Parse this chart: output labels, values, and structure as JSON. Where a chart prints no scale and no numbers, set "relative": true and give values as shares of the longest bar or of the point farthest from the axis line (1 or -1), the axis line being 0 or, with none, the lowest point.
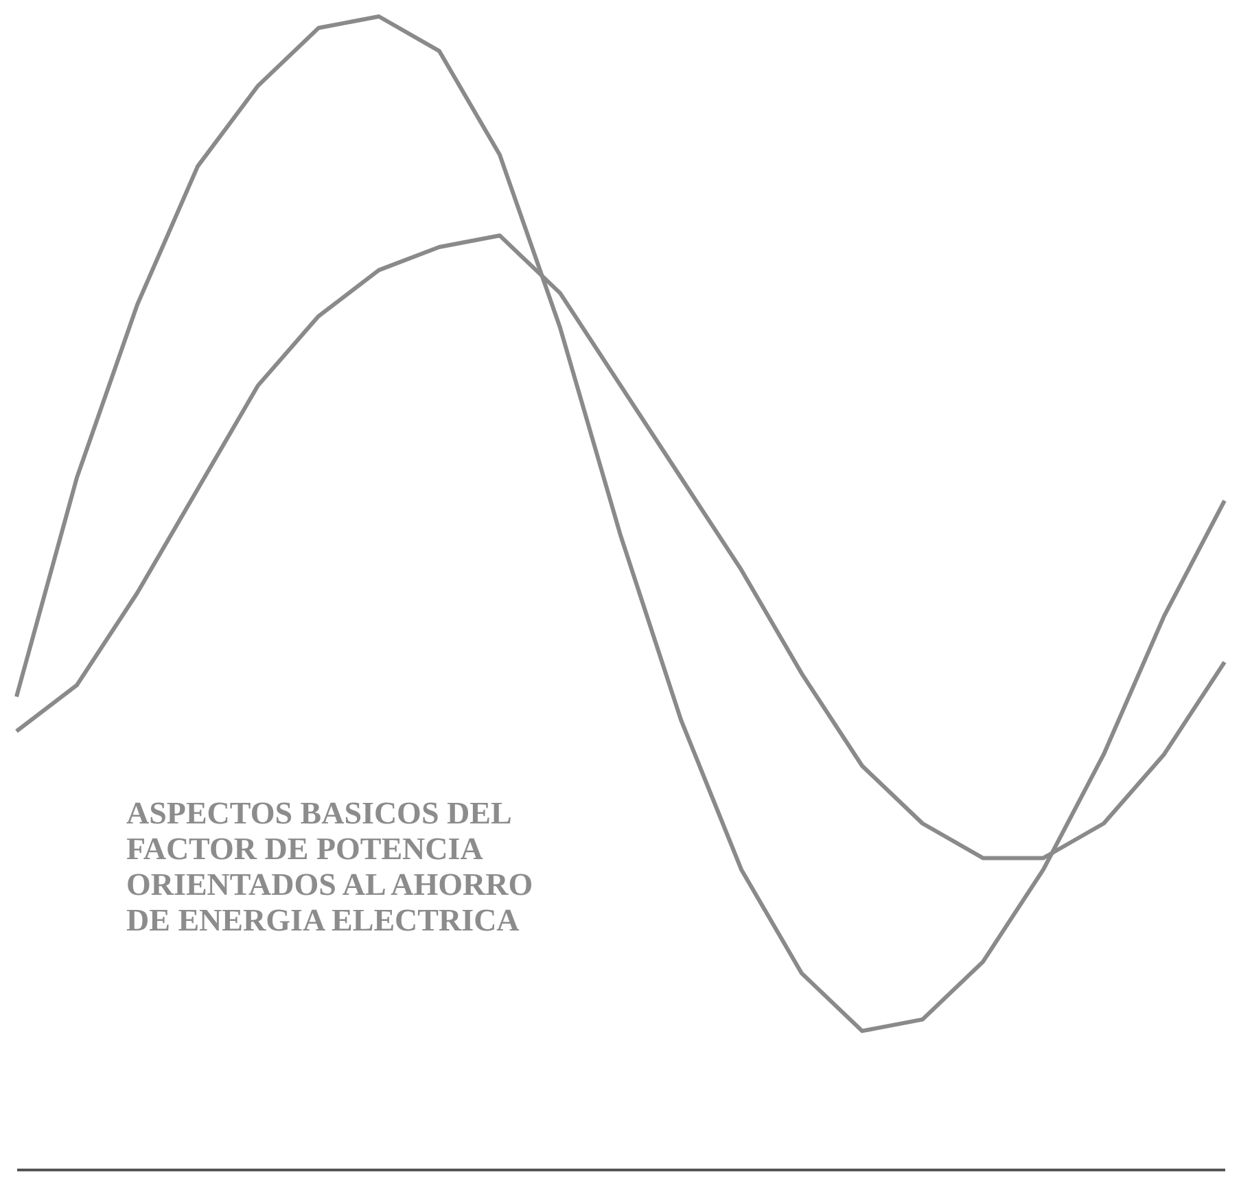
{
  "chart_data": {
    "type": "line",
    "relative": true,
    "categories": [
      null,
      null,
      null,
      null,
      null,
      null,
      null,
      null,
      null,
      null,
      null,
      null,
      null,
      null,
      null,
      null,
      null,
      null,
      null,
      null,
      null
    ],
    "series": [
      {
        "color": "#8a8a8a",
        "values": [
          0.41,
          0.6,
          0.75,
          0.87,
          0.94,
          0.99,
          1.0,
          0.97,
          0.88,
          0.73,
          0.55,
          0.39,
          0.26,
          0.17,
          0.12,
          0.13,
          0.18,
          0.26,
          0.36,
          0.48,
          0.58
        ]
      },
      {
        "color": "#8a8a8a",
        "values": [
          0.38,
          0.42,
          0.5,
          0.59,
          0.68,
          0.74,
          0.78,
          0.8,
          0.81,
          0.76,
          0.68,
          0.6,
          0.52,
          0.43,
          0.35,
          0.3,
          0.27,
          0.27,
          0.3,
          0.36,
          0.44
        ]
      }
    ],
    "line_style": "solid",
    "annotations": [
      "ASPECTOS BASICOS DEL",
      "FACTOR DE POTENCIA",
      "ORIENTADOS AL AHORRO",
      "DE ENERGIA ELECTRICA"
    ]
  }
}
